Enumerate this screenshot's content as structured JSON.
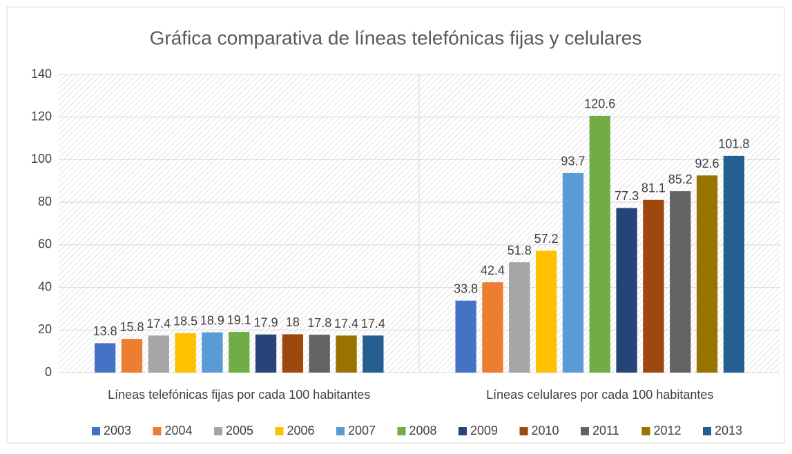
{
  "chart_data": {
    "type": "bar",
    "title": "Gráfica comparativa de líneas telefónicas fijas y celulares",
    "categories": [
      "Líneas telefónicas fijas por cada 100 habitantes",
      "Líneas celulares por cada 100 habitantes"
    ],
    "series": [
      {
        "name": "2003",
        "color": "#4472c4",
        "values": [
          13.8,
          33.8
        ]
      },
      {
        "name": "2004",
        "color": "#ed7d31",
        "values": [
          15.8,
          42.4
        ]
      },
      {
        "name": "2005",
        "color": "#a5a5a5",
        "values": [
          17.4,
          51.8
        ]
      },
      {
        "name": "2006",
        "color": "#ffc000",
        "values": [
          18.5,
          57.2
        ]
      },
      {
        "name": "2007",
        "color": "#5b9bd5",
        "values": [
          18.9,
          93.7
        ]
      },
      {
        "name": "2008",
        "color": "#70ad47",
        "values": [
          19.1,
          120.6
        ]
      },
      {
        "name": "2009",
        "color": "#264478",
        "values": [
          17.9,
          77.3
        ]
      },
      {
        "name": "2010",
        "color": "#9e480e",
        "values": [
          18,
          81.1
        ]
      },
      {
        "name": "2011",
        "color": "#636363",
        "values": [
          17.8,
          85.2
        ]
      },
      {
        "name": "2012",
        "color": "#997300",
        "values": [
          17.4,
          92.6
        ]
      },
      {
        "name": "2013",
        "color": "#255e91",
        "values": [
          17.4,
          101.8
        ]
      }
    ],
    "ylim": [
      0,
      140
    ],
    "yticks": [
      0,
      20,
      40,
      60,
      80,
      100,
      120,
      140
    ],
    "grid": true,
    "legend": "bottom"
  }
}
